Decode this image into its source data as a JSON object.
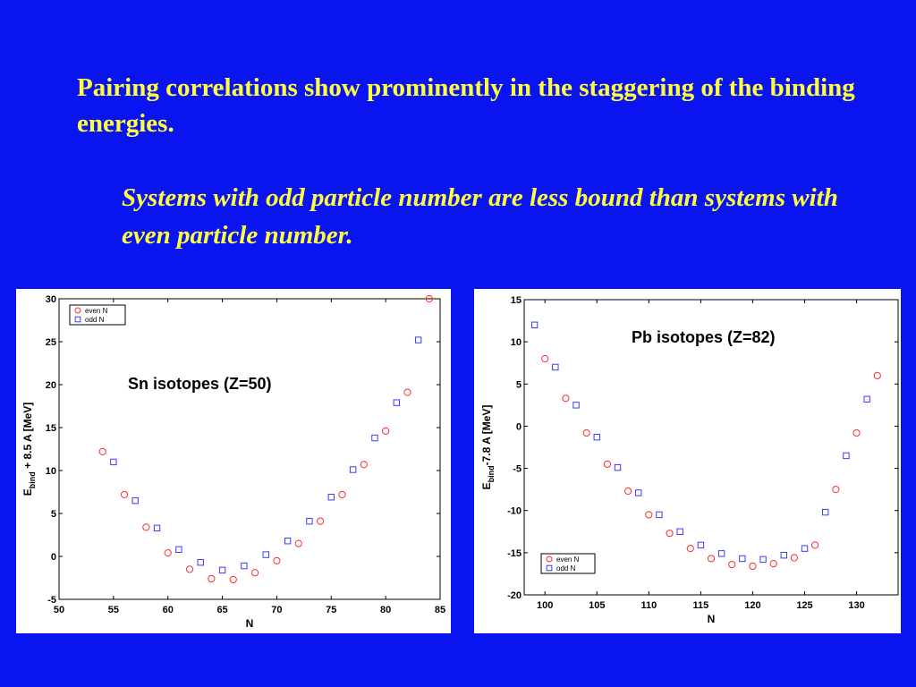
{
  "slide": {
    "headline": "Pairing correlations show prominently in the staggering of the binding energies.",
    "subline": "Systems with odd particle number are less bound than systems with even particle number."
  },
  "colors": {
    "background": "#0a14f0",
    "text": "#ffff3c",
    "even": "#ff2a2a",
    "odd": "#3a3aff"
  },
  "chart_data": [
    {
      "type": "scatter",
      "annotation": "Sn isotopes (Z=50)",
      "xlabel": "N",
      "ylabel_main": "E",
      "ylabel_sub": "bind",
      "ylabel_rest": " + 8.5 A [MeV]",
      "xlim": [
        50,
        85
      ],
      "ylim": [
        -5,
        30
      ],
      "xticks": [
        50,
        55,
        60,
        65,
        70,
        75,
        80,
        85
      ],
      "yticks": [
        -5,
        0,
        5,
        10,
        15,
        20,
        25,
        30
      ],
      "legend_placement": "top-left",
      "grid": false,
      "series": [
        {
          "name": "even N",
          "marker": "circle",
          "color": "#ff2a2a",
          "x": [
            54,
            56,
            58,
            60,
            62,
            64,
            66,
            68,
            70,
            72,
            74,
            76,
            78,
            80,
            82,
            84
          ],
          "y": [
            12.2,
            7.2,
            3.4,
            0.4,
            -1.5,
            -2.6,
            -2.7,
            -1.9,
            -0.5,
            1.5,
            4.1,
            7.2,
            10.7,
            14.6,
            19.1,
            30.0
          ]
        },
        {
          "name": "odd N",
          "marker": "square",
          "color": "#3a3aff",
          "x": [
            55,
            57,
            59,
            61,
            63,
            65,
            67,
            69,
            71,
            73,
            75,
            77,
            79,
            81,
            83
          ],
          "y": [
            11.0,
            6.5,
            3.3,
            0.8,
            -0.7,
            -1.6,
            -1.1,
            0.2,
            1.8,
            4.1,
            6.9,
            10.1,
            13.8,
            17.9,
            25.2
          ]
        }
      ]
    },
    {
      "type": "scatter",
      "annotation": "Pb isotopes (Z=82)",
      "xlabel": "N",
      "ylabel_main": "E",
      "ylabel_sub": "bind",
      "ylabel_rest": "-7.8 A [MeV]",
      "xlim": [
        98,
        134
      ],
      "ylim": [
        -20,
        15
      ],
      "xticks": [
        100,
        105,
        110,
        115,
        120,
        125,
        130
      ],
      "yticks": [
        -20,
        -15,
        -10,
        -5,
        0,
        5,
        10,
        15
      ],
      "legend_placement": "bottom-left",
      "grid": false,
      "series": [
        {
          "name": "even N",
          "marker": "circle",
          "color": "#ff2a2a",
          "x": [
            100,
            102,
            104,
            106,
            108,
            110,
            112,
            114,
            116,
            118,
            120,
            122,
            124,
            126,
            128,
            130,
            132
          ],
          "y": [
            8.0,
            3.3,
            -0.8,
            -4.5,
            -7.7,
            -10.5,
            -12.7,
            -14.5,
            -15.7,
            -16.4,
            -16.6,
            -16.3,
            -15.6,
            -14.1,
            -7.5,
            -0.8,
            6.0
          ]
        },
        {
          "name": "odd N",
          "marker": "square",
          "color": "#3a3aff",
          "x": [
            99,
            101,
            103,
            105,
            107,
            109,
            111,
            113,
            115,
            117,
            119,
            121,
            123,
            125,
            127,
            129,
            131
          ],
          "y": [
            12.0,
            7.0,
            2.5,
            -1.3,
            -4.9,
            -7.9,
            -10.5,
            -12.5,
            -14.1,
            -15.1,
            -15.7,
            -15.8,
            -15.3,
            -14.5,
            -10.2,
            -3.5,
            3.2
          ]
        }
      ]
    }
  ]
}
